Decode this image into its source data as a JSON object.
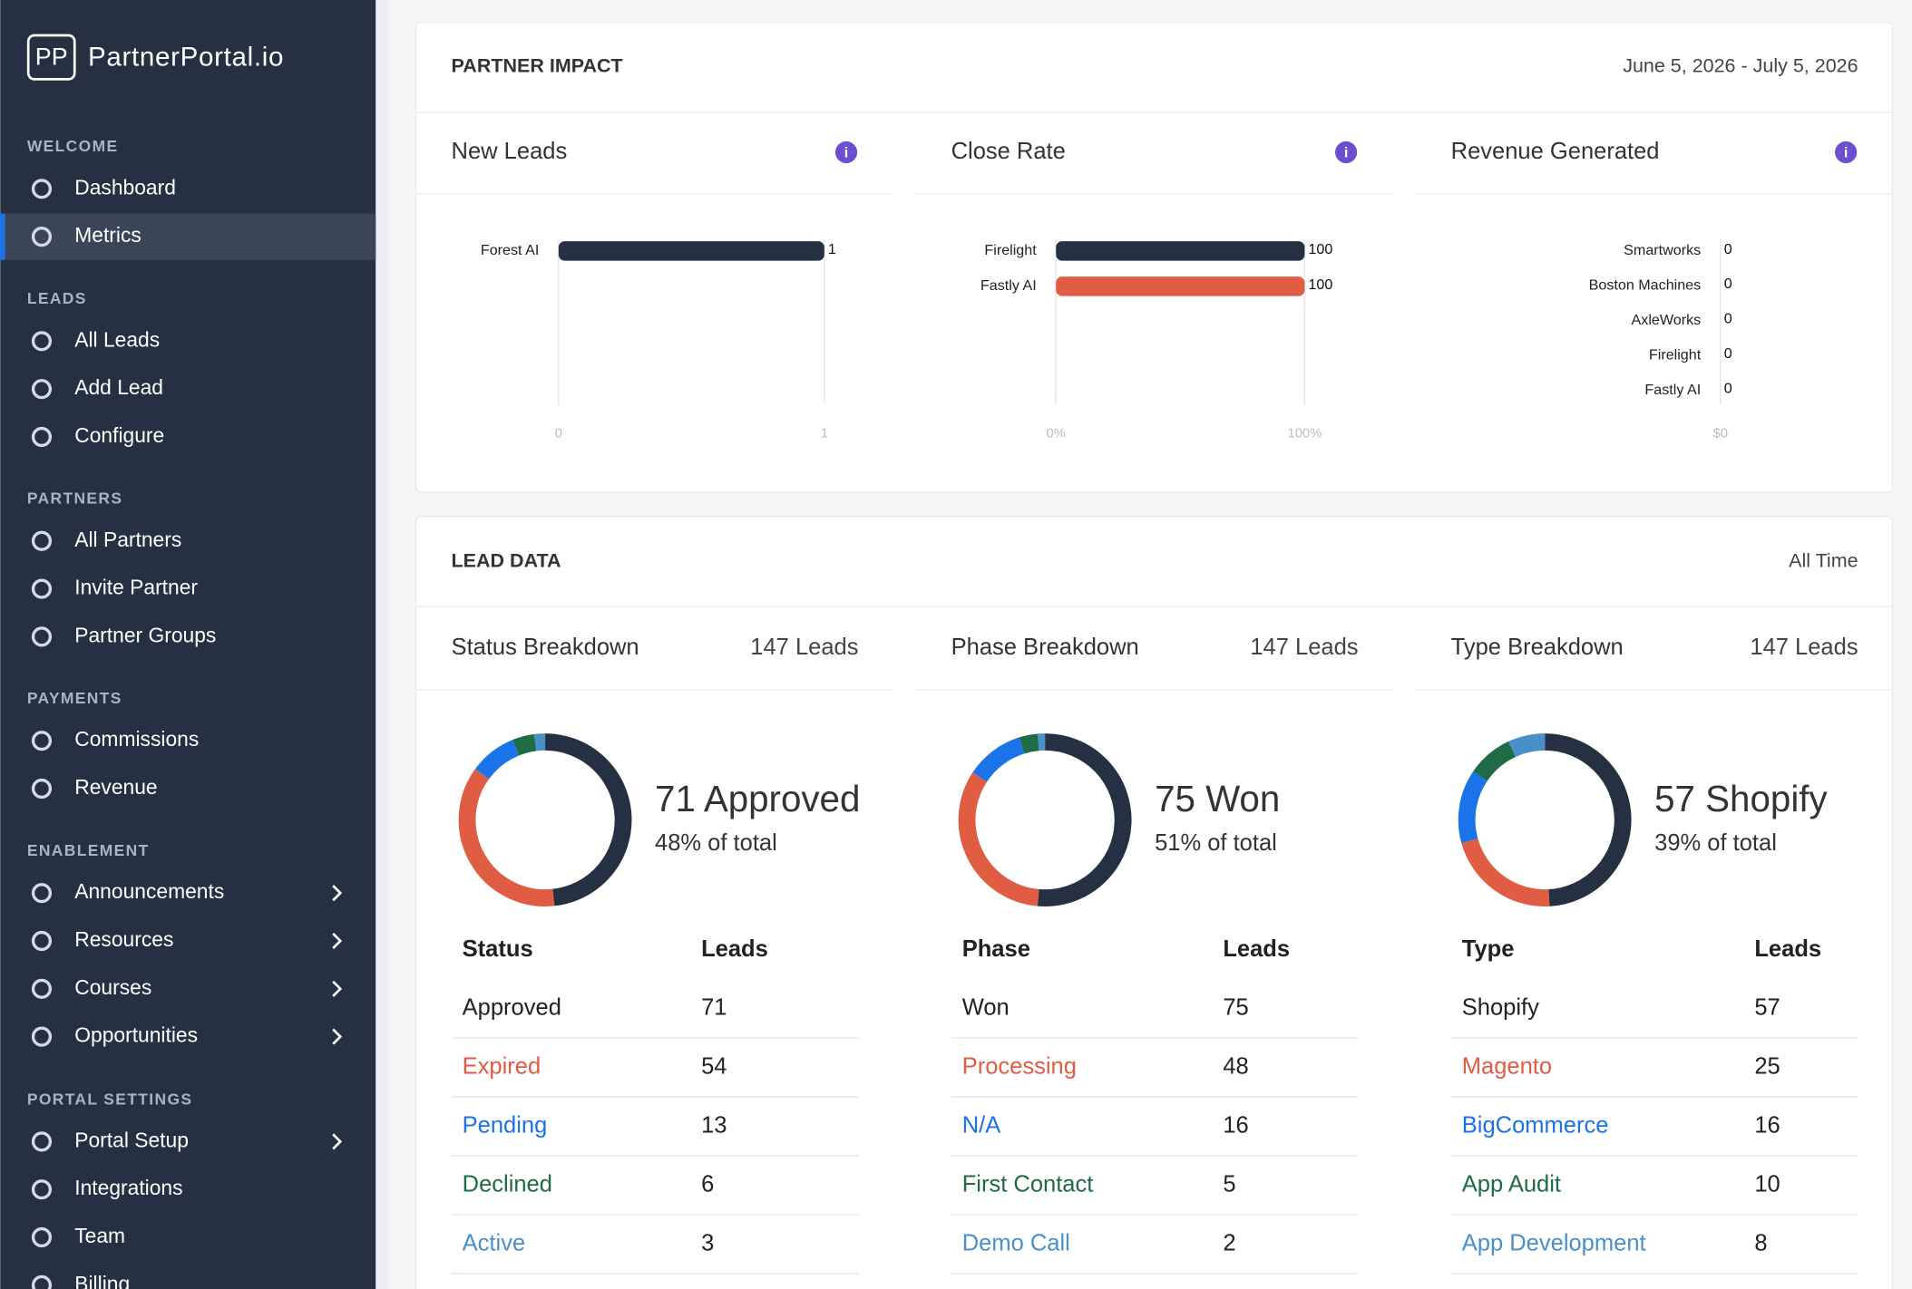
{
  "sidebar": {
    "logo_mark": "PP",
    "brand": "PartnerPortal.io",
    "sections": [
      {
        "title": "WELCOME",
        "items": [
          {
            "label": "Dashboard"
          },
          {
            "label": "Metrics",
            "active": true
          }
        ]
      },
      {
        "title": "LEADS",
        "items": [
          {
            "label": "All Leads"
          },
          {
            "label": "Add Lead"
          },
          {
            "label": "Configure"
          }
        ]
      },
      {
        "title": "PARTNERS",
        "items": [
          {
            "label": "All Partners"
          },
          {
            "label": "Invite Partner"
          },
          {
            "label": "Partner Groups"
          }
        ]
      },
      {
        "title": "PAYMENTS",
        "items": [
          {
            "label": "Commissions"
          },
          {
            "label": "Revenue"
          }
        ]
      },
      {
        "title": "ENABLEMENT",
        "items": [
          {
            "label": "Announcements",
            "submenu": true
          },
          {
            "label": "Resources",
            "submenu": true
          },
          {
            "label": "Courses",
            "submenu": true
          },
          {
            "label": "Opportunities",
            "submenu": true
          }
        ]
      },
      {
        "title": "PORTAL SETTINGS",
        "items": [
          {
            "label": "Portal Setup",
            "submenu": true
          },
          {
            "label": "Integrations"
          },
          {
            "label": "Team"
          },
          {
            "label": "Billing"
          }
        ]
      }
    ]
  },
  "partner_impact": {
    "title": "PARTNER IMPACT",
    "date_range": "June 5, 2026 - July 5, 2026",
    "charts": [
      {
        "type": "bar",
        "title": "New Leads",
        "categories": [
          "Forest AI"
        ],
        "values": [
          1
        ],
        "colors": [
          "#253143"
        ],
        "xlim": [
          0,
          1
        ],
        "xticks": [
          0,
          1
        ]
      },
      {
        "type": "bar",
        "title": "Close Rate",
        "categories": [
          "Firelight",
          "Fastly AI"
        ],
        "values": [
          100,
          100
        ],
        "colors": [
          "#253143",
          "#e05d44"
        ],
        "xlim": [
          0,
          100
        ],
        "xticks": [
          {
            "value": 0,
            "label": "0%"
          },
          {
            "value": 100,
            "label": "100%"
          }
        ]
      },
      {
        "type": "bar",
        "title": "Revenue Generated",
        "categories": [
          "Smartworks",
          "Boston Machines",
          "AxleWorks",
          "Firelight",
          "Fastly AI"
        ],
        "values": [
          0,
          0,
          0,
          0,
          0
        ],
        "colors": [
          "#253143",
          "#e05d44",
          "#1a73e8",
          "#1e6b45",
          "#4a90c8"
        ],
        "xticks": [
          {
            "value": 0,
            "label": "$0"
          }
        ]
      }
    ]
  },
  "lead_data": {
    "title": "LEAD DATA",
    "period": "All Time",
    "breakdowns": [
      {
        "type": "donut",
        "title": "Status Breakdown",
        "count_label": "147 Leads",
        "headline": "71 Approved",
        "share": "48% of total",
        "columns": [
          "Status",
          "Leads"
        ],
        "categories": [
          "Approved",
          "Expired",
          "Pending",
          "Declined",
          "Active"
        ],
        "values": [
          71,
          54,
          13,
          6,
          3
        ],
        "colors": [
          "#253143",
          "#e05d44",
          "#1a73e8",
          "#1e6b45",
          "#4a90c8"
        ]
      },
      {
        "type": "donut",
        "title": "Phase Breakdown",
        "count_label": "147 Leads",
        "headline": "75 Won",
        "share": "51% of total",
        "columns": [
          "Phase",
          "Leads"
        ],
        "categories": [
          "Won",
          "Processing",
          "N/A",
          "First Contact",
          "Demo Call"
        ],
        "values": [
          75,
          48,
          16,
          5,
          2
        ],
        "colors": [
          "#253143",
          "#e05d44",
          "#1a73e8",
          "#1e6b45",
          "#4a90c8"
        ]
      },
      {
        "type": "donut",
        "title": "Type Breakdown",
        "count_label": "147 Leads",
        "headline": "57 Shopify",
        "share": "39% of total",
        "columns": [
          "Type",
          "Leads"
        ],
        "categories": [
          "Shopify",
          "Magento",
          "BigCommerce",
          "App Audit",
          "App Development"
        ],
        "values": [
          57,
          25,
          16,
          10,
          8
        ],
        "colors": [
          "#253143",
          "#e05d44",
          "#1a73e8",
          "#1e6b45",
          "#4a90c8"
        ]
      }
    ]
  }
}
